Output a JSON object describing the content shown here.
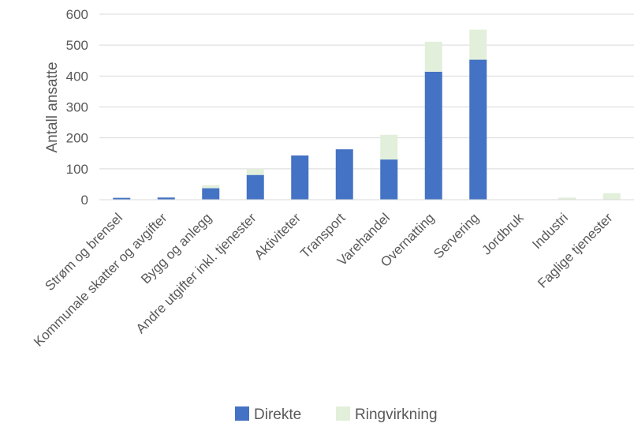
{
  "chart_data": {
    "type": "bar",
    "stacked": true,
    "categories": [
      "Strøm og brensel",
      "Kommunale skatter og avgifter",
      "Bygg og anlegg",
      "Andre utgifter inkl. tjenester",
      "Aktiviteter",
      "Transport",
      "Varehandel",
      "Overnatting",
      "Servering",
      "Jordbruk",
      "Industri",
      "Faglige tjenester"
    ],
    "series": [
      {
        "name": "Direkte",
        "color": "#4472C4",
        "values": [
          6,
          7,
          37,
          80,
          143,
          163,
          130,
          414,
          453,
          0,
          0,
          0
        ]
      },
      {
        "name": "Ringvirkning",
        "color": "#E2EFDA",
        "values": [
          0,
          0,
          10,
          20,
          0,
          0,
          80,
          97,
          97,
          0,
          7,
          21
        ]
      }
    ],
    "title": "",
    "xlabel": "",
    "ylabel": "Antall ansatte",
    "ylim": [
      0,
      600
    ],
    "yticks": [
      0,
      100,
      200,
      300,
      400,
      500,
      600
    ],
    "grid": true,
    "legend_position": "bottom"
  }
}
